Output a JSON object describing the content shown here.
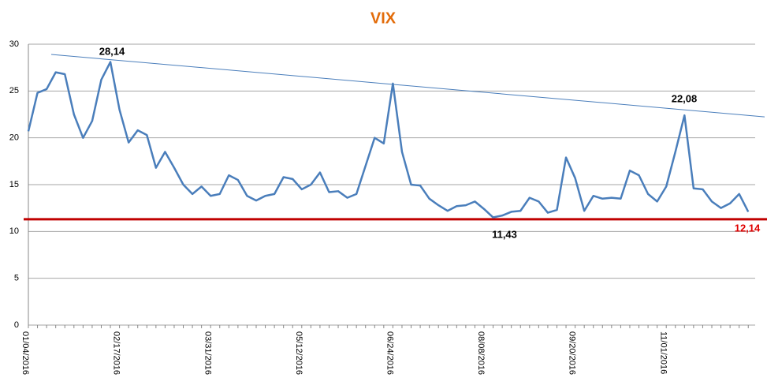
{
  "chart_data": {
    "type": "line",
    "title": "VIX",
    "categories": [
      "01/04/2016",
      null,
      null,
      null,
      null,
      null,
      null,
      null,
      null,
      null,
      "02/17/2016",
      null,
      null,
      null,
      null,
      null,
      null,
      null,
      null,
      null,
      "03/31/2016",
      null,
      null,
      null,
      null,
      null,
      null,
      null,
      null,
      null,
      "05/12/2016",
      null,
      null,
      null,
      null,
      null,
      null,
      null,
      null,
      null,
      "06/24/2016",
      null,
      null,
      null,
      null,
      null,
      null,
      null,
      null,
      null,
      "08/08/2016",
      null,
      null,
      null,
      null,
      null,
      null,
      null,
      null,
      null,
      "09/20/2016",
      null,
      null,
      null,
      null,
      null,
      null,
      null,
      null,
      null,
      "11/01/2016",
      null,
      null,
      null,
      null,
      null,
      null,
      null,
      null,
      null
    ],
    "series": [
      {
        "name": "VIX",
        "color": "#4a7ebb",
        "values": [
          20.7,
          24.8,
          25.2,
          27,
          26.8,
          22.5,
          20,
          21.8,
          26.2,
          28.1,
          23,
          19.5,
          20.8,
          20.3,
          16.8,
          18.5,
          16.8,
          15,
          14,
          14.8,
          13.8,
          14,
          16,
          15.5,
          13.8,
          13.3,
          13.8,
          14,
          15.8,
          15.6,
          14.5,
          15,
          16.3,
          14.2,
          14.3,
          13.6,
          14,
          17,
          20,
          19.4,
          25.8,
          18.5,
          15,
          14.9,
          13.5,
          12.8,
          12.2,
          12.7,
          12.8,
          13.2,
          12.4,
          11.5,
          11.7,
          12.1,
          12.2,
          13.6,
          13.2,
          12,
          12.3,
          17.9,
          15.7,
          12.2,
          13.8,
          13.5,
          13.6,
          13.5,
          16.5,
          16,
          14,
          13.2,
          14.8,
          18.5,
          22.4,
          14.6,
          14.5,
          13.2,
          12.5,
          13,
          14,
          12.1
        ]
      }
    ],
    "trend_line": {
      "color": "#4a7ebb",
      "values": [
        28.9,
        22.24
      ]
    },
    "support_line": {
      "color": "#c00000",
      "value": 11.3
    },
    "annotations": [
      {
        "text": "28,14"
      },
      {
        "text": "22,08"
      },
      {
        "text": "11,43"
      },
      {
        "text": "12,14",
        "color": "#e00000"
      }
    ],
    "ylim": [
      0,
      30
    ],
    "yticks": [
      0,
      5,
      10,
      15,
      20,
      25,
      30
    ],
    "grid": true
  }
}
